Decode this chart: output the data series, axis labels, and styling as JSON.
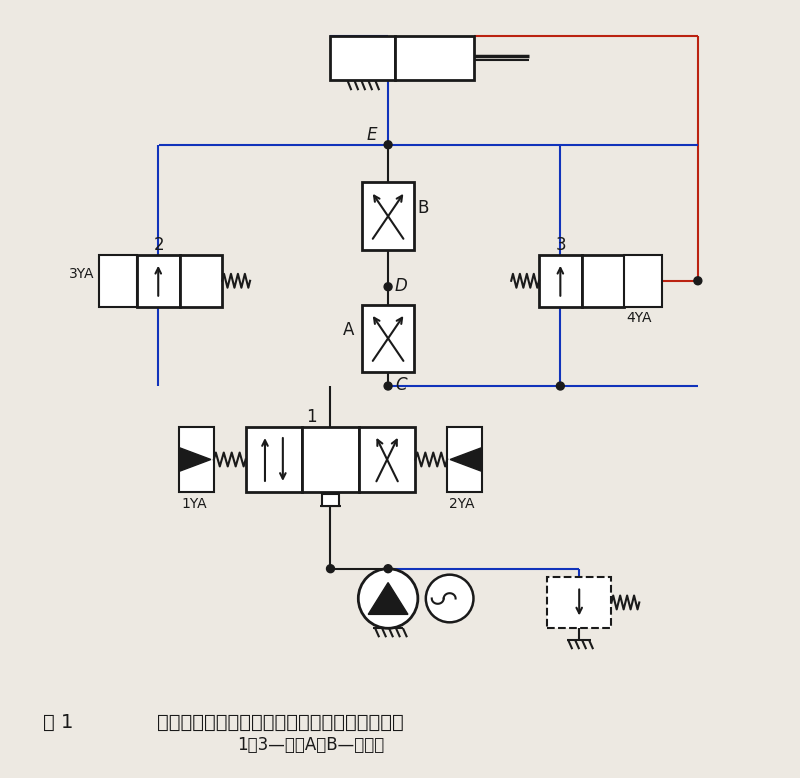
{
  "bg_color": "#ede9e2",
  "lc": "#1a1a1a",
  "blue": "#1133bb",
  "red": "#bb2211",
  "title_fig": "图 1",
  "title_main": "二调速阀串联的两工进速度换接现有回路原理图",
  "subtitle": "1～3—阀；A，B—调速阀",
  "fig_w": 8.0,
  "fig_h": 7.78
}
